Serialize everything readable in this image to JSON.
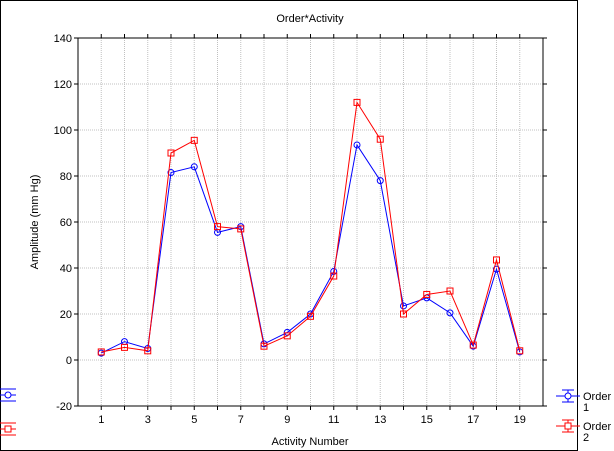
{
  "chart_data": {
    "type": "line",
    "title": "Order*Activity",
    "xlabel": "Activity Number",
    "ylabel": "Amplitude (mm Hg)",
    "x": [
      1,
      2,
      3,
      4,
      5,
      6,
      7,
      8,
      9,
      10,
      11,
      12,
      13,
      14,
      15,
      16,
      17,
      18,
      19
    ],
    "xticks": [
      "1",
      "3",
      "5",
      "7",
      "9",
      "11",
      "13",
      "15",
      "17",
      "19"
    ],
    "yticks": [
      "-20",
      "0",
      "20",
      "40",
      "60",
      "80",
      "100",
      "120",
      "140"
    ],
    "xlim": [
      0,
      20
    ],
    "ylim": [
      -20,
      140
    ],
    "grid": true,
    "legend_position": "bottom-right",
    "series": [
      {
        "name_line1": "Order",
        "name_line2": "1",
        "color": "#0000ff",
        "marker": "circle",
        "values": [
          3,
          8,
          5,
          81.5,
          84,
          55.5,
          58,
          7,
          12,
          20,
          38.5,
          93.5,
          78,
          23.5,
          27,
          20.5,
          6,
          39.5,
          3.5
        ]
      },
      {
        "name_line1": "Order",
        "name_line2": "2",
        "color": "#ff0000",
        "marker": "square",
        "values": [
          3.5,
          5.5,
          4,
          90,
          95.5,
          58,
          57,
          6,
          10.5,
          19,
          36.5,
          112,
          96,
          20,
          28.5,
          30,
          6.5,
          43.5,
          4
        ]
      }
    ]
  }
}
